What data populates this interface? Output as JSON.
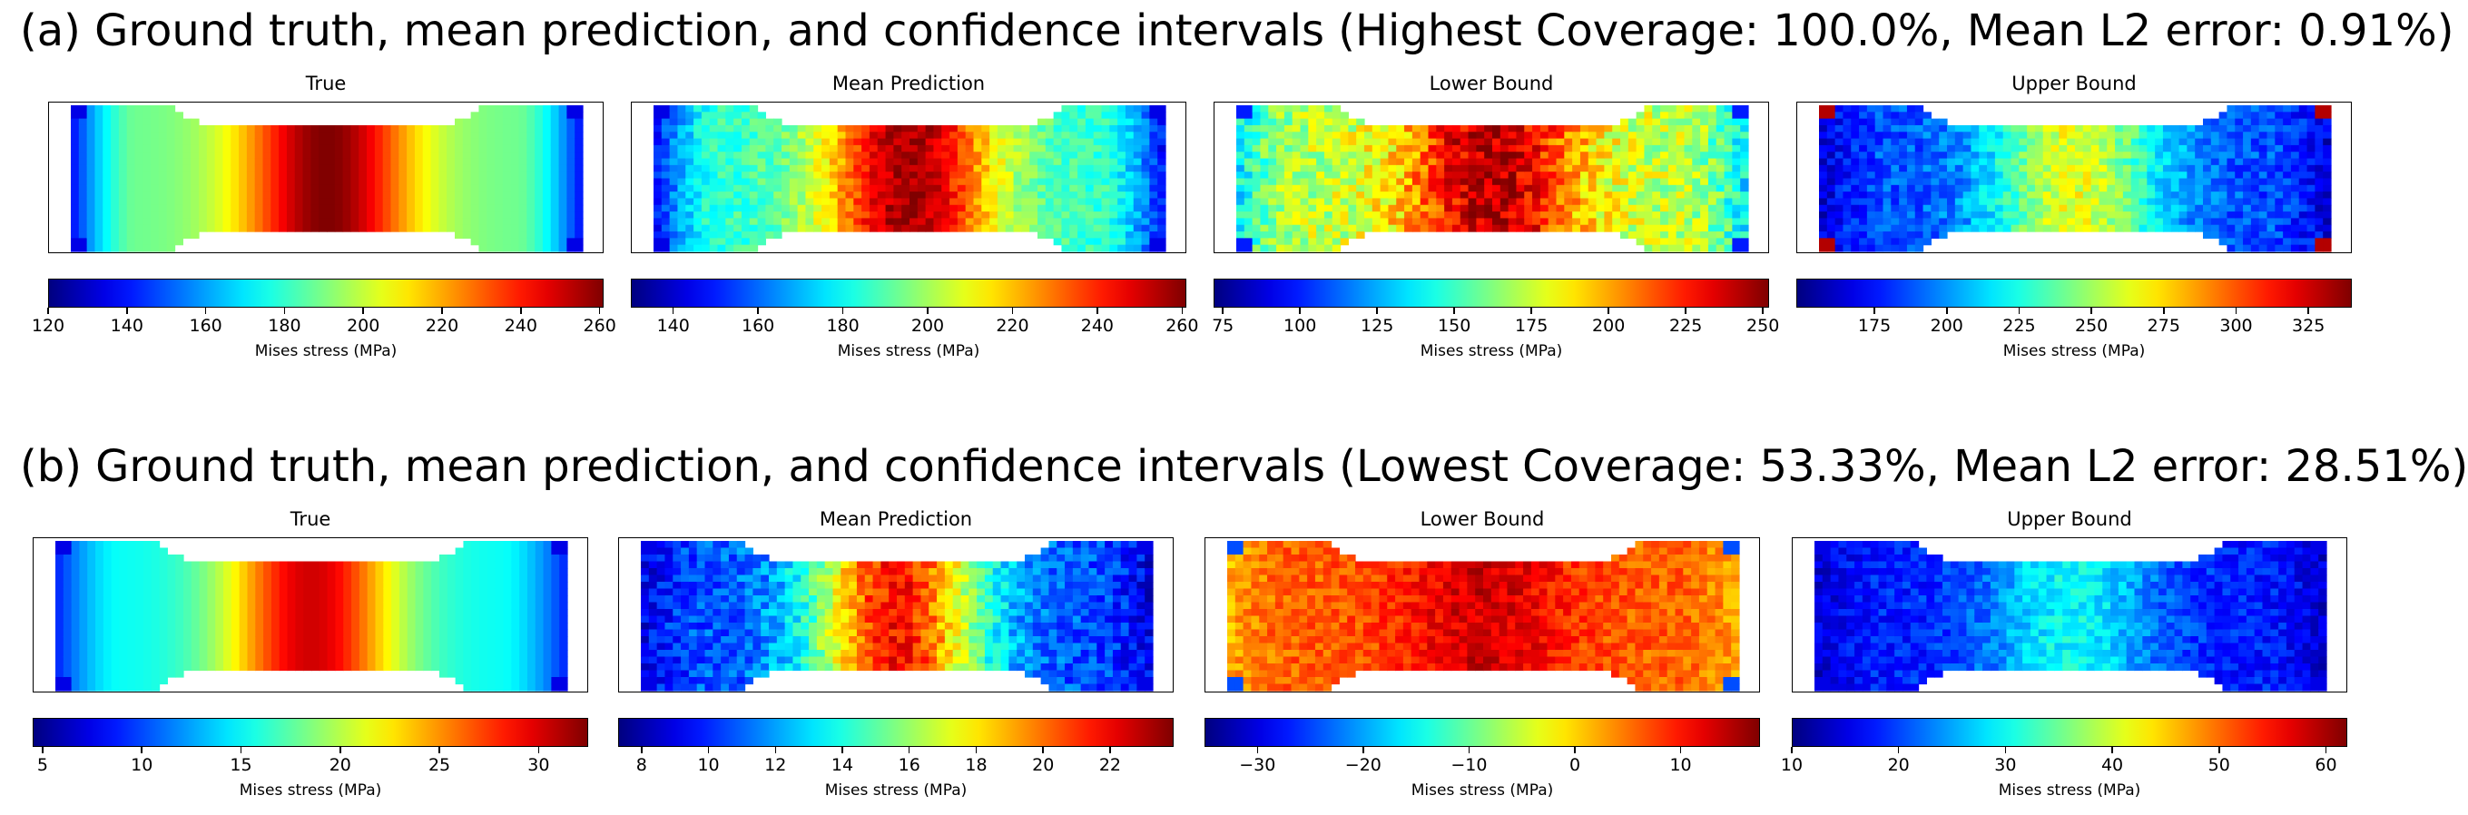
{
  "rows": [
    {
      "title": "(a) Ground truth, mean prediction, and confidence intervals (Highest Coverage: 100.0%, Mean L2 error: 0.91%)",
      "panels": [
        {
          "title": "True",
          "cbar_label": "Mises stress (MPa)",
          "vmin": 120,
          "vmax": 261,
          "ticks": [
            120,
            140,
            160,
            180,
            200,
            220,
            240,
            260
          ],
          "tick_labels": [
            "120",
            "140",
            "160",
            "180",
            "200",
            "220",
            "240",
            "260"
          ],
          "field": {
            "base": 0.48,
            "peak": 1.0,
            "edge_low": 0.12,
            "noise": 0.0,
            "corner": 0.1
          }
        },
        {
          "title": "Mean Prediction",
          "cbar_label": "Mises stress (MPa)",
          "vmin": 130,
          "vmax": 261,
          "ticks": [
            140,
            160,
            180,
            200,
            220,
            240,
            260
          ],
          "tick_labels": [
            "140",
            "160",
            "180",
            "200",
            "220",
            "240",
            "260"
          ],
          "field": {
            "base": 0.42,
            "peak": 0.97,
            "edge_low": 0.12,
            "noise": 0.06,
            "corner": 0.1
          }
        },
        {
          "title": "Lower Bound",
          "cbar_label": "Mises stress (MPa)",
          "vmin": 72,
          "vmax": 252,
          "ticks": [
            75,
            100,
            125,
            150,
            175,
            200,
            225,
            250
          ],
          "tick_labels": [
            "75",
            "100",
            "125",
            "150",
            "175",
            "200",
            "225",
            "250"
          ],
          "field": {
            "base": 0.55,
            "peak": 0.95,
            "edge_low": 0.35,
            "noise": 0.1,
            "corner": 0.15
          }
        },
        {
          "title": "Upper Bound",
          "cbar_label": "Mises stress (MPa)",
          "vmin": 148,
          "vmax": 340,
          "ticks": [
            175,
            200,
            225,
            250,
            275,
            300,
            325
          ],
          "tick_labels": [
            "175",
            "200",
            "225",
            "250",
            "275",
            "300",
            "325"
          ],
          "field": {
            "base": 0.2,
            "peak": 0.6,
            "edge_low": 0.08,
            "noise": 0.07,
            "corner": 0.95
          }
        }
      ]
    },
    {
      "title": "(b) Ground truth, mean prediction, and confidence intervals (Lowest Coverage: 53.33%, Mean L2 error: 28.51%)",
      "panels": [
        {
          "title": "True",
          "cbar_label": "Mises stress (MPa)",
          "vmin": 4.5,
          "vmax": 32.5,
          "ticks": [
            5,
            10,
            15,
            20,
            25,
            30
          ],
          "tick_labels": [
            "5",
            "10",
            "15",
            "20",
            "25",
            "30"
          ],
          "field": {
            "base": 0.38,
            "peak": 0.92,
            "edge_low": 0.15,
            "noise": 0.0,
            "corner": 0.1
          }
        },
        {
          "title": "Mean Prediction",
          "cbar_label": "Mises stress (MPa)",
          "vmin": 7.3,
          "vmax": 23.9,
          "ticks": [
            8,
            10,
            12,
            14,
            16,
            18,
            20,
            22
          ],
          "tick_labels": [
            "8",
            "10",
            "12",
            "14",
            "16",
            "18",
            "20",
            "22"
          ],
          "field": {
            "base": 0.2,
            "peak": 0.86,
            "edge_low": 0.1,
            "noise": 0.08,
            "corner": 0.1
          }
        },
        {
          "title": "Lower Bound",
          "cbar_label": "Mises stress (MPa)",
          "vmin": -35,
          "vmax": 17.5,
          "ticks": [
            -30,
            -20,
            -10,
            0,
            10
          ],
          "tick_labels": [
            "−30",
            "−20",
            "−10",
            "0",
            "10"
          ],
          "field": {
            "base": 0.78,
            "peak": 0.92,
            "edge_low": 0.7,
            "noise": 0.06,
            "corner": 0.2
          }
        },
        {
          "title": "Upper Bound",
          "cbar_label": "Mises stress (MPa)",
          "vmin": 10,
          "vmax": 62,
          "ticks": [
            10,
            20,
            30,
            40,
            50,
            60
          ],
          "tick_labels": [
            "10",
            "20",
            "30",
            "40",
            "50",
            "60"
          ],
          "field": {
            "base": 0.15,
            "peak": 0.38,
            "edge_low": 0.08,
            "noise": 0.06,
            "corner": 0.1
          }
        }
      ]
    }
  ],
  "colors": {
    "figure_bg": "#ffffff",
    "frame": "#000000"
  }
}
